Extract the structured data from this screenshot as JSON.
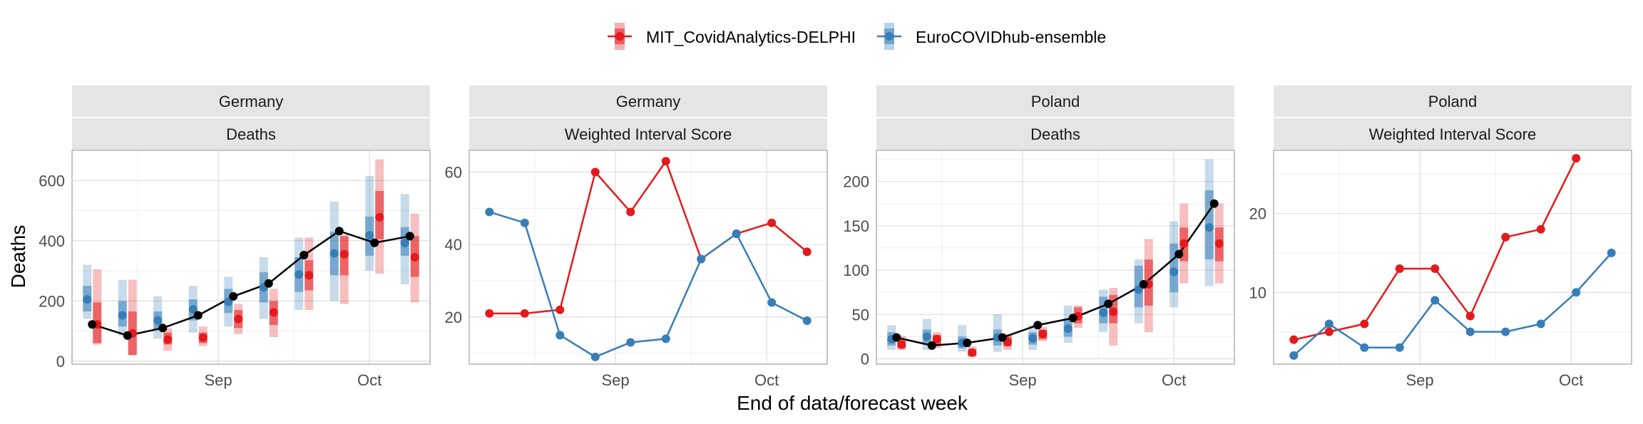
{
  "figure": {
    "y_axis_label": "Deaths",
    "x_axis_label": "End of data/forecast week"
  },
  "legend": [
    {
      "label": "MIT_CovidAnalytics-DELPHI",
      "color": "#e41a1c"
    },
    {
      "label": "EuroCOVIDhub-ensemble",
      "color": "#377eb8"
    }
  ],
  "colors": {
    "observed": "#000000",
    "strip_background": "#e5e5e5",
    "grid_major": "#dedede",
    "grid_minor": "#efefef",
    "panel_border": "#b3b3b3"
  },
  "x_ticks": [
    "Sep",
    "Oct"
  ],
  "chart_data": [
    {
      "type": "line",
      "panel_title": "Germany",
      "panel_subtitle": "Deaths",
      "x": [
        "2021-08-07",
        "2021-08-14",
        "2021-08-21",
        "2021-08-28",
        "2021-09-04",
        "2021-09-11",
        "2021-09-18",
        "2021-09-25",
        "2021-10-02",
        "2021-10-09"
      ],
      "x_range": [
        "2021-08-03",
        "2021-10-13"
      ],
      "y_ticks": [
        0,
        200,
        400,
        600
      ],
      "ylim": [
        -10,
        700
      ],
      "grid": true,
      "observed": [
        122,
        85,
        110,
        152,
        215,
        258,
        352,
        432,
        393,
        415
      ],
      "series": [
        {
          "name": "EuroCOVIDhub-ensemble",
          "median": [
            205,
            152,
            135,
            172,
            197,
            245,
            288,
            358,
            418,
            392
          ],
          "inner": [
            [
              165,
              250
            ],
            [
              115,
              200
            ],
            [
              105,
              165
            ],
            [
              135,
              205
            ],
            [
              160,
              240
            ],
            [
              195,
              295
            ],
            [
              230,
              345
            ],
            [
              285,
              430
            ],
            [
              350,
              480
            ],
            [
              350,
              445
            ]
          ],
          "outer": [
            [
              140,
              320
            ],
            [
              85,
              270
            ],
            [
              75,
              215
            ],
            [
              95,
              250
            ],
            [
              115,
              280
            ],
            [
              140,
              345
            ],
            [
              170,
              410
            ],
            [
              200,
              530
            ],
            [
              300,
              615
            ],
            [
              255,
              555
            ]
          ]
        },
        {
          "name": "MIT_CovidAnalytics-DELPHI",
          "median": [
            122,
            92,
            72,
            78,
            140,
            162,
            285,
            355,
            478,
            345
          ],
          "inner": [
            [
              60,
              195
            ],
            [
              20,
              165
            ],
            [
              55,
              95
            ],
            [
              60,
              95
            ],
            [
              110,
              170
            ],
            [
              120,
              200
            ],
            [
              235,
              335
            ],
            [
              285,
              415
            ],
            [
              405,
              565
            ],
            [
              280,
              415
            ]
          ],
          "outer": [
            [
              55,
              305
            ],
            [
              20,
              270
            ],
            [
              35,
              110
            ],
            [
              50,
              115
            ],
            [
              90,
              190
            ],
            [
              80,
              240
            ],
            [
              170,
              410
            ],
            [
              190,
              420
            ],
            [
              290,
              670
            ],
            [
              195,
              490
            ]
          ]
        }
      ]
    },
    {
      "type": "line",
      "panel_title": "Germany",
      "panel_subtitle": "Weighted Interval Score",
      "x": [
        "2021-08-07",
        "2021-08-14",
        "2021-08-21",
        "2021-08-28",
        "2021-09-04",
        "2021-09-11",
        "2021-09-18",
        "2021-09-25",
        "2021-10-02",
        "2021-10-09"
      ],
      "x_range": [
        "2021-08-03",
        "2021-10-13"
      ],
      "y_ticks": [
        20,
        40,
        60
      ],
      "ylim": [
        7,
        66
      ],
      "grid": true,
      "series": [
        {
          "name": "MIT_CovidAnalytics-DELPHI",
          "values": [
            21,
            21,
            22,
            60,
            49,
            63,
            36,
            43,
            46,
            38
          ]
        },
        {
          "name": "EuroCOVIDhub-ensemble",
          "values": [
            49,
            46,
            15,
            9,
            13,
            14,
            36,
            43,
            24,
            19
          ]
        }
      ]
    },
    {
      "type": "line",
      "panel_title": "Poland",
      "panel_subtitle": "Deaths",
      "x": [
        "2021-08-07",
        "2021-08-14",
        "2021-08-21",
        "2021-08-28",
        "2021-09-04",
        "2021-09-11",
        "2021-09-18",
        "2021-09-25",
        "2021-10-02",
        "2021-10-09"
      ],
      "x_range": [
        "2021-08-03",
        "2021-10-13"
      ],
      "y_ticks": [
        0,
        50,
        100,
        150,
        200
      ],
      "ylim": [
        -6,
        235
      ],
      "grid": true,
      "observed": [
        24,
        15,
        18,
        24,
        38,
        46,
        62,
        84,
        118,
        175
      ],
      "series": [
        {
          "name": "EuroCOVIDhub-ensemble",
          "median": [
            22,
            25,
            18,
            24,
            23,
            34,
            52,
            78,
            98,
            148
          ],
          "inner": [
            [
              15,
              30
            ],
            [
              17,
              33
            ],
            [
              12,
              25
            ],
            [
              15,
              33
            ],
            [
              16,
              30
            ],
            [
              25,
              45
            ],
            [
              40,
              70
            ],
            [
              58,
              105
            ],
            [
              75,
              130
            ],
            [
              112,
              190
            ]
          ],
          "outer": [
            [
              10,
              38
            ],
            [
              10,
              45
            ],
            [
              8,
              38
            ],
            [
              8,
              50
            ],
            [
              10,
              38
            ],
            [
              18,
              60
            ],
            [
              30,
              78
            ],
            [
              40,
              112
            ],
            [
              58,
              155
            ],
            [
              82,
              225
            ]
          ]
        },
        {
          "name": "MIT_CovidAnalytics-DELPHI",
          "median": [
            16,
            22,
            7,
            19,
            28,
            48,
            53,
            84,
            130,
            130
          ],
          "inner": [
            [
              12,
              22
            ],
            [
              16,
              27
            ],
            [
              3,
              11
            ],
            [
              14,
              25
            ],
            [
              22,
              33
            ],
            [
              40,
              58
            ],
            [
              40,
              72
            ],
            [
              60,
              112
            ],
            [
              110,
              148
            ],
            [
              110,
              148
            ]
          ],
          "outer": [
            [
              10,
              26
            ],
            [
              12,
              30
            ],
            [
              2,
              14
            ],
            [
              10,
              28
            ],
            [
              20,
              36
            ],
            [
              35,
              60
            ],
            [
              15,
              80
            ],
            [
              30,
              135
            ],
            [
              85,
              175
            ],
            [
              85,
              175
            ]
          ]
        }
      ]
    },
    {
      "type": "line",
      "panel_title": "Poland",
      "panel_subtitle": "Weighted Interval Score",
      "x": [
        "2021-08-07",
        "2021-08-14",
        "2021-08-21",
        "2021-08-28",
        "2021-09-04",
        "2021-09-11",
        "2021-09-18",
        "2021-09-25",
        "2021-10-02",
        "2021-10-09"
      ],
      "x_range": [
        "2021-08-03",
        "2021-10-13"
      ],
      "y_ticks": [
        10,
        20
      ],
      "ylim": [
        0.9,
        28
      ],
      "grid": true,
      "series": [
        {
          "name": "MIT_CovidAnalytics-DELPHI",
          "values": [
            4,
            5,
            6,
            13,
            13,
            7,
            17,
            18,
            27,
            null
          ]
        },
        {
          "name": "EuroCOVIDhub-ensemble",
          "values": [
            2,
            6,
            3,
            3,
            9,
            5,
            5,
            6,
            10,
            15
          ]
        }
      ]
    }
  ]
}
